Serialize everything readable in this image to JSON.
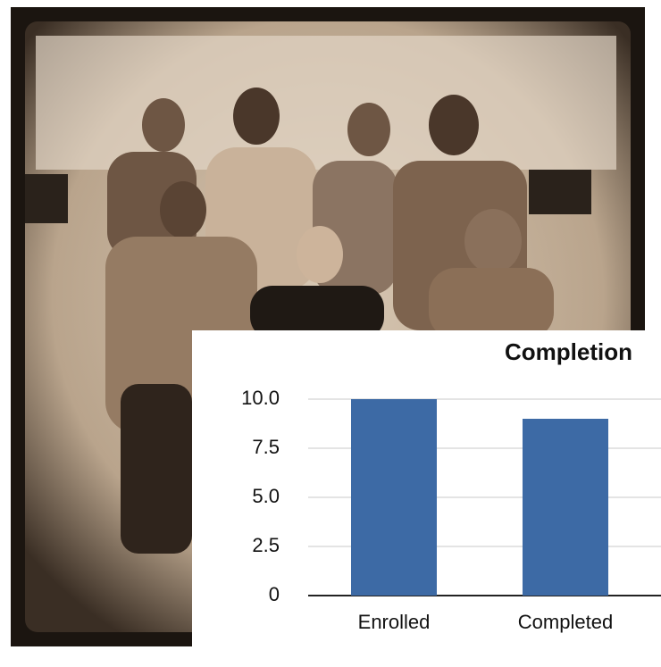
{
  "chart_data": {
    "type": "bar",
    "title": "Completion",
    "categories": [
      "Enrolled",
      "Completed"
    ],
    "values": [
      10,
      9
    ],
    "color": "#3d6aa5",
    "ylim": [
      0,
      10
    ],
    "yticks": [
      0,
      2.5,
      {
        "value": 5,
        "label": "5.0"
      },
      7.5,
      {
        "value": 10,
        "label": "10.0"
      }
    ],
    "grid": true
  }
}
